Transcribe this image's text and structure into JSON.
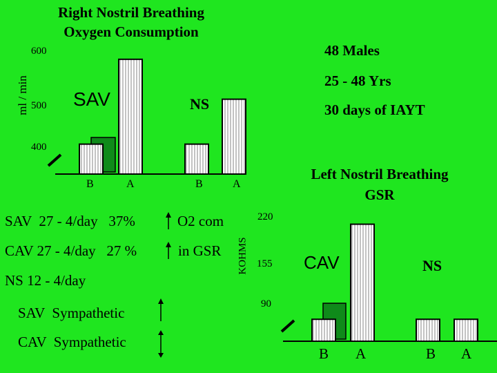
{
  "colors": {
    "background": "#1fe61f",
    "bar_fill": "#ffffff",
    "bar_hatch": "#9a9a9a",
    "shadow_bar": "#0f8a1a",
    "text": "#000000"
  },
  "notes": {
    "sav_line": "SAV  27 - 4/day   37%",
    "sav_effect": "O2 com",
    "cav_line": "CAV 27 - 4/day   27 %",
    "cav_effect": "in GSR",
    "ns_line": "NS 12 - 4/day",
    "sav_symp": "SAV  Sympathetic",
    "cav_symp": "CAV  Sympathetic",
    "sav_symp_arrow": "up",
    "cav_symp_arrow": "up-down"
  },
  "chart_data": [
    {
      "type": "bar",
      "title_line1": "Right Nostril Breathing",
      "title_line2": "Oxygen Consumption",
      "ylabel": "ml / min",
      "yticks": [
        "600",
        "500",
        "400"
      ],
      "ytick_values": [
        600,
        500,
        400
      ],
      "ylim": [
        370,
        615
      ],
      "groups": [
        {
          "label": "SAV",
          "bars": [
            {
              "label": "B",
              "value": 430
            },
            {
              "label": "A",
              "value": 600
            }
          ]
        },
        {
          "label": "NS",
          "bars": [
            {
              "label": "B",
              "value": 430
            },
            {
              "label": "A",
              "value": 520
            }
          ]
        }
      ],
      "annotations": [
        "48 Males",
        "25 - 48 Yrs",
        "30 days of IAYT"
      ]
    },
    {
      "type": "bar",
      "title_line1": "Left Nostril Breathing",
      "title_line2": "GSR",
      "ylabel": "KOHMS",
      "yticks": [
        "220",
        "155",
        "90"
      ],
      "ytick_values": [
        220,
        155,
        90
      ],
      "ylim": [
        60,
        230
      ],
      "groups": [
        {
          "label": "CAV",
          "bars": [
            {
              "label": "B",
              "value": 90
            },
            {
              "label": "A",
              "value": 220
            }
          ]
        },
        {
          "label": "NS",
          "bars": [
            {
              "label": "B",
              "value": 90
            },
            {
              "label": "A",
              "value": 90
            }
          ]
        }
      ]
    }
  ]
}
